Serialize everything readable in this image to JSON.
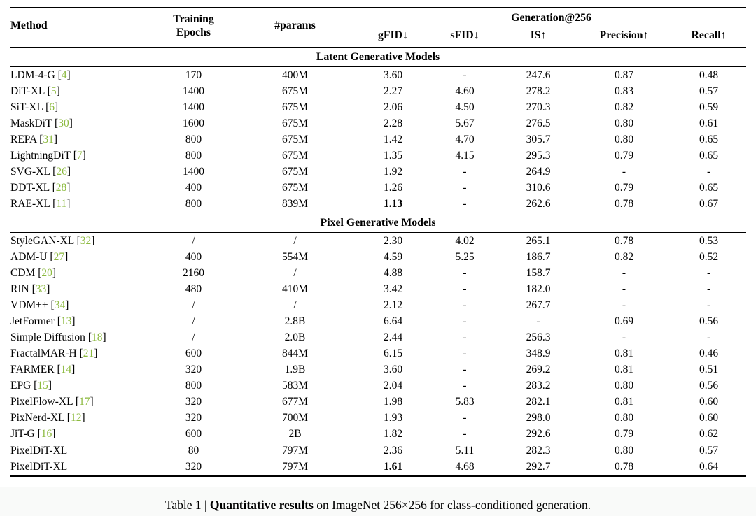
{
  "colors": {
    "citation_green": "#8CBA3F",
    "rule_black": "#000000"
  },
  "punct": {
    "cite_open": " [",
    "cite_close": "]"
  },
  "header": {
    "group": "Generation@256",
    "method": "Method",
    "epochs": "Training\nEpochs",
    "params": "#params",
    "metrics": [
      "gFID↓",
      "sFID↓",
      "IS↑",
      "Precision↑",
      "Recall↑"
    ]
  },
  "table": {
    "sections": [
      {
        "title": "Latent Generative Models",
        "rows": [
          {
            "method": "LDM-4-G",
            "cite": "4",
            "values": [
              "170",
              "400M",
              "3.60",
              "-",
              "247.6",
              "0.87",
              "0.48"
            ]
          },
          {
            "method": "DiT-XL",
            "cite": "5",
            "values": [
              "1400",
              "675M",
              "2.27",
              "4.60",
              "278.2",
              "0.83",
              "0.57"
            ]
          },
          {
            "method": "SiT-XL",
            "cite": "6",
            "values": [
              "1400",
              "675M",
              "2.06",
              "4.50",
              "270.3",
              "0.82",
              "0.59"
            ]
          },
          {
            "method": "MaskDiT",
            "cite": "30",
            "values": [
              "1600",
              "675M",
              "2.28",
              "5.67",
              "276.5",
              "0.80",
              "0.61"
            ]
          },
          {
            "method": "REPA",
            "cite": "31",
            "values": [
              "800",
              "675M",
              "1.42",
              "4.70",
              "305.7",
              "0.80",
              "0.65"
            ]
          },
          {
            "method": "LightningDiT",
            "cite": "7",
            "values": [
              "800",
              "675M",
              "1.35",
              "4.15",
              "295.3",
              "0.79",
              "0.65"
            ]
          },
          {
            "method": "SVG-XL",
            "cite": "26",
            "values": [
              "1400",
              "675M",
              "1.92",
              "-",
              "264.9",
              "-",
              "-"
            ]
          },
          {
            "method": "DDT-XL",
            "cite": "28",
            "values": [
              "400",
              "675M",
              "1.26",
              "-",
              "310.6",
              "0.79",
              "0.65"
            ]
          },
          {
            "method": "RAE-XL",
            "cite": "11",
            "values": [
              "800",
              "839M",
              "1.13",
              "-",
              "262.6",
              "0.78",
              "0.67"
            ],
            "bold": [
              2
            ]
          }
        ]
      },
      {
        "title": "Pixel Generative Models",
        "rows": [
          {
            "method": "StyleGAN-XL",
            "cite": "32",
            "values": [
              "/",
              "/",
              "2.30",
              "4.02",
              "265.1",
              "0.78",
              "0.53"
            ]
          },
          {
            "method": "ADM-U",
            "cite": "27",
            "values": [
              "400",
              "554M",
              "4.59",
              "5.25",
              "186.7",
              "0.82",
              "0.52"
            ]
          },
          {
            "method": "CDM",
            "cite": "20",
            "values": [
              "2160",
              "/",
              "4.88",
              "-",
              "158.7",
              "-",
              "-"
            ]
          },
          {
            "method": "RIN",
            "cite": "33",
            "values": [
              "480",
              "410M",
              "3.42",
              "-",
              "182.0",
              "-",
              "-"
            ]
          },
          {
            "method": "VDM++",
            "cite": "34",
            "values": [
              "/",
              "/",
              "2.12",
              "-",
              "267.7",
              "-",
              "-"
            ]
          },
          {
            "method": "JetFormer",
            "cite": "13",
            "values": [
              "/",
              "2.8B",
              "6.64",
              "-",
              "-",
              "0.69",
              "0.56"
            ]
          },
          {
            "method": "Simple Diffusion",
            "cite": "18",
            "values": [
              "/",
              "2.0B",
              "2.44",
              "-",
              "256.3",
              "-",
              "-"
            ]
          },
          {
            "method": "FractalMAR-H",
            "cite": "21",
            "values": [
              "600",
              "844M",
              "6.15",
              "-",
              "348.9",
              "0.81",
              "0.46"
            ]
          },
          {
            "method": "FARMER",
            "cite": "14",
            "values": [
              "320",
              "1.9B",
              "3.60",
              "-",
              "269.2",
              "0.81",
              "0.51"
            ]
          },
          {
            "method": "EPG",
            "cite": "15",
            "values": [
              "800",
              "583M",
              "2.04",
              "-",
              "283.2",
              "0.80",
              "0.56"
            ]
          },
          {
            "method": "PixelFlow-XL",
            "cite": "17",
            "values": [
              "320",
              "677M",
              "1.98",
              "5.83",
              "282.1",
              "0.81",
              "0.60"
            ]
          },
          {
            "method": "PixNerd-XL",
            "cite": "12",
            "values": [
              "320",
              "700M",
              "1.93",
              "-",
              "298.0",
              "0.80",
              "0.60"
            ]
          },
          {
            "method": "JiT-G",
            "cite": "16",
            "values": [
              "600",
              "2B",
              "1.82",
              "-",
              "292.6",
              "0.79",
              "0.62"
            ]
          }
        ]
      },
      {
        "title": null,
        "rows": [
          {
            "method": "PixelDiT-XL",
            "cite": null,
            "values": [
              "80",
              "797M",
              "2.36",
              "5.11",
              "282.3",
              "0.80",
              "0.57"
            ]
          },
          {
            "method": "PixelDiT-XL",
            "cite": null,
            "values": [
              "320",
              "797M",
              "1.61",
              "4.68",
              "292.7",
              "0.78",
              "0.64"
            ],
            "bold": [
              2
            ]
          }
        ]
      }
    ]
  },
  "caption": {
    "prefix": "Table 1 | ",
    "bold": "Quantitative results",
    "rest": " on ImageNet 256×256 for class-conditioned generation."
  }
}
